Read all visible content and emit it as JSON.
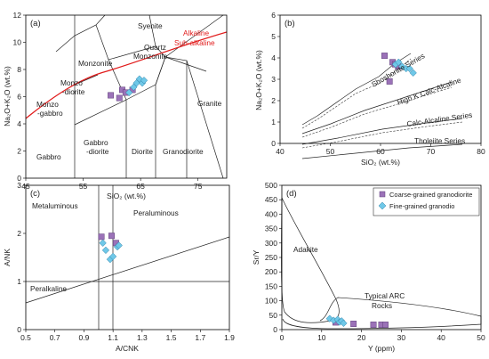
{
  "colors": {
    "coarse_fill": "#9b72b8",
    "coarse_stroke": "#5f3f7a",
    "fine_fill": "#6fc8e8",
    "fine_stroke": "#2a7fa6",
    "divider_red": "#e11b1b"
  },
  "chart_data": [
    {
      "panel": "(a)",
      "type": "scatter",
      "xlabel": "SiO₂ (wt.%)",
      "ylabel": "Na₂O+K₂O (wt.%)",
      "xlim": [
        45,
        80
      ],
      "ylim": [
        0,
        12
      ],
      "xticks": [
        "45",
        "55",
        "65",
        "75"
      ],
      "yticks": [
        "0",
        "2",
        "4",
        "6",
        "8",
        "10",
        "12"
      ],
      "field_labels": [
        "Syenite",
        "Monzonite",
        "Quartz",
        "Monzonite",
        "Monzo",
        "-diorite",
        "Monzo",
        "-gabbro",
        "Gabbro",
        "Gabbro",
        "-diorite",
        "Diorite",
        "Granodiorite",
        "Granite"
      ],
      "divider_labels": [
        "Alkaline",
        "Sub-alkaline"
      ],
      "series": [
        {
          "name": "Coarse-grained granodiorite",
          "x": [
            59.8,
            61.3,
            61.8,
            62.4,
            63.6
          ],
          "y": [
            6.1,
            5.9,
            6.5,
            6.3,
            6.5
          ]
        },
        {
          "name": "Fine-grained granodio",
          "x": [
            63.0,
            63.8,
            64.3,
            64.8,
            65.3,
            65.6
          ],
          "y": [
            6.3,
            6.7,
            7.0,
            7.3,
            7.0,
            7.2
          ]
        }
      ]
    },
    {
      "panel": "(b)",
      "type": "scatter",
      "xlabel": "SiO₂ (wt.%)",
      "ylabel": "Na₂O+K₂O (wt.%)",
      "xlim": [
        40,
        80
      ],
      "ylim": [
        0,
        6
      ],
      "xticks": [
        "40",
        "50",
        "60",
        "70",
        "80"
      ],
      "yticks": [
        "0",
        "1",
        "2",
        "3",
        "4",
        "5",
        "6"
      ],
      "series_labels": [
        "Shoshonite Series",
        "High K Calc-Alcaline",
        "Calc-Alcaline Series",
        "Tholeiite Series"
      ],
      "series": [
        {
          "name": "Coarse-grained granodiorite",
          "x": [
            60.8,
            61.8,
            62.4,
            62.9,
            63.5
          ],
          "y": [
            4.1,
            2.9,
            3.8,
            3.7,
            3.6
          ]
        },
        {
          "name": "Fine-grained granodio",
          "x": [
            63.0,
            63.6,
            64.3,
            65.1,
            65.8,
            66.5
          ],
          "y": [
            3.7,
            3.8,
            3.6,
            3.5,
            3.5,
            3.3
          ]
        }
      ]
    },
    {
      "panel": "(c)",
      "type": "scatter",
      "xlabel": "A/CNK",
      "ylabel": "A/NK",
      "xlim": [
        0.5,
        1.9
      ],
      "ylim": [
        0,
        3
      ],
      "xticks": [
        "0.5",
        "0.7",
        "0.9",
        "1.1",
        "1.3",
        "1.5",
        "1.7",
        "1.9"
      ],
      "yticks": [
        "0",
        "1",
        "2",
        "3"
      ],
      "field_labels": [
        "Metaluminous",
        "Peraluminous",
        "Peralkaline"
      ],
      "series": [
        {
          "name": "Coarse-grained granodiorite",
          "x": [
            1.02,
            1.09,
            1.12
          ],
          "y": [
            1.93,
            1.95,
            1.8
          ]
        },
        {
          "name": "Fine-grained granodio",
          "x": [
            1.03,
            1.05,
            1.08,
            1.1,
            1.13,
            1.14
          ],
          "y": [
            1.8,
            1.65,
            1.46,
            1.52,
            1.72,
            1.75
          ]
        }
      ]
    },
    {
      "panel": "(d)",
      "type": "scatter",
      "xlabel": "Y (ppm)",
      "ylabel": "Sr/Y",
      "xlim": [
        0,
        50
      ],
      "ylim": [
        0,
        500
      ],
      "xticks": [
        "0",
        "10",
        "20",
        "30",
        "40",
        "50"
      ],
      "yticks": [
        "0",
        "50",
        "100",
        "150",
        "200",
        "250",
        "300",
        "350",
        "400",
        "450",
        "500"
      ],
      "field_labels": [
        "Adakite",
        "Typical ARC",
        "Rocks"
      ],
      "legend": {
        "position": "top-right"
      },
      "series": [
        {
          "name": "Coarse-grained granodiorite",
          "x": [
            13.5,
            18.0,
            23.0,
            25.0,
            26.0
          ],
          "y": [
            25,
            20,
            17,
            17,
            17
          ]
        },
        {
          "name": "Fine-grained granodio",
          "x": [
            12.0,
            13.0,
            14.0,
            14.5,
            15.0,
            15.5
          ],
          "y": [
            38,
            32,
            35,
            26,
            30,
            22
          ]
        }
      ]
    }
  ]
}
